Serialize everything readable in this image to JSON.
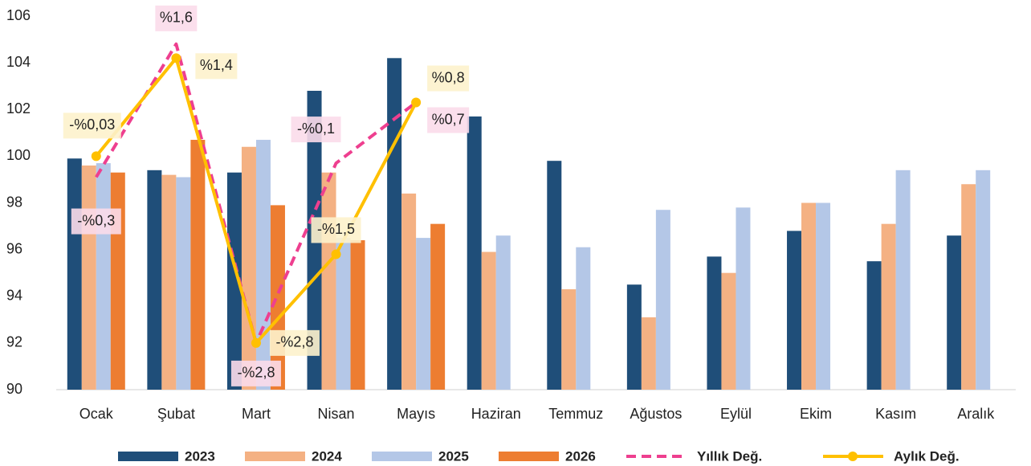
{
  "chart_data": {
    "type": "bar",
    "categories": [
      "Ocak",
      "Şubat",
      "Mart",
      "Nisan",
      "Mayıs",
      "Haziran",
      "Temmuz",
      "Ağustos",
      "Eylül",
      "Ekim",
      "Kasım",
      "Aralık"
    ],
    "series": [
      {
        "name": "2023",
        "color": "#1f4e79",
        "values": [
          99.9,
          99.4,
          99.3,
          102.8,
          104.2,
          101.7,
          99.8,
          94.5,
          95.7,
          96.8,
          95.5,
          96.6
        ]
      },
      {
        "name": "2024",
        "color": "#f4b183",
        "values": [
          99.6,
          99.2,
          100.4,
          99.3,
          98.4,
          95.9,
          94.3,
          93.1,
          95.0,
          98.0,
          97.1,
          98.8
        ]
      },
      {
        "name": "2025",
        "color": "#b4c7e7",
        "values": [
          99.7,
          99.1,
          100.7,
          96.5,
          96.5,
          96.6,
          96.1,
          97.7,
          97.8,
          98.0,
          99.4,
          99.4
        ]
      },
      {
        "name": "2026",
        "color": "#ed7d31",
        "values": [
          99.3,
          100.7,
          97.9,
          96.4,
          97.1,
          null,
          null,
          null,
          null,
          null,
          null,
          null
        ]
      }
    ],
    "lines": [
      {
        "name": "Yıllık Değ.",
        "color": "#ee3f8f",
        "dashed": true,
        "label_bg": "#fbdcea",
        "values": [
          99.1,
          104.8,
          92.0,
          99.7,
          102.3
        ],
        "point_labels": [
          "-%0,3",
          "%1,6",
          "-%2,8",
          "-%0,1",
          "%0,7"
        ]
      },
      {
        "name": "Aylık Değ.",
        "color": "#ffc000",
        "dashed": false,
        "label_bg": "#fdf2cc",
        "values": [
          100.0,
          104.2,
          92.0,
          95.8,
          102.3
        ],
        "point_labels": [
          "-%0,03",
          "%1,4",
          "-%2,8",
          "-%1,5",
          "%0,8"
        ]
      }
    ],
    "ylim": [
      90,
      106
    ],
    "yticks": [
      90,
      92,
      94,
      96,
      98,
      100,
      102,
      104,
      106
    ],
    "ytick_colors": [
      "#e00000",
      "#e00000",
      "#e00000",
      "#e00000",
      "#e00000",
      "#222222",
      "#222222",
      "#222222",
      "#222222"
    ]
  }
}
